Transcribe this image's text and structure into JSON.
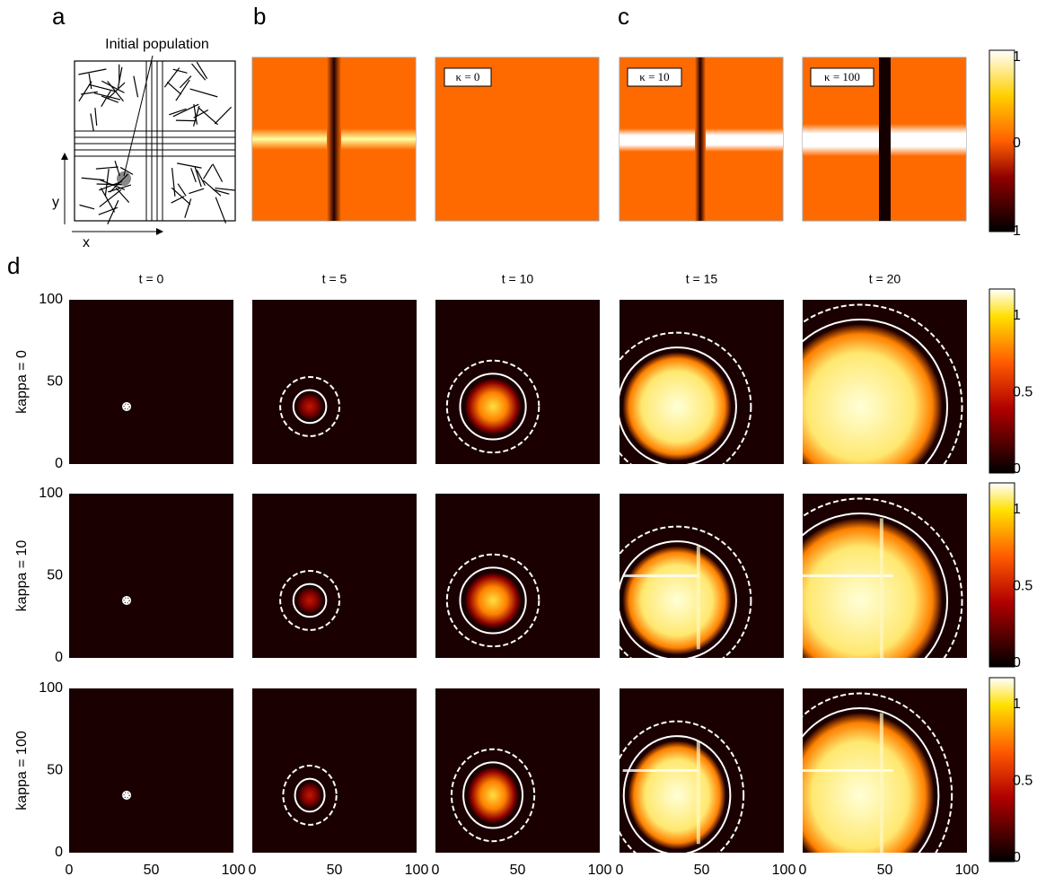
{
  "panel_labels": [
    "a",
    "b",
    "c",
    "d"
  ],
  "schematic": {
    "label": "Initial population",
    "x_label": "x",
    "y_label": "y"
  },
  "kappa_boxes": [
    "κ = 0",
    "κ = 10",
    "κ = 100"
  ],
  "top_colorbar_ticks": [
    "1",
    "0",
    "1"
  ],
  "columns": [
    "t = 0",
    "t = 5",
    "t = 10",
    "t = 15",
    "t = 20"
  ],
  "rows": [
    "kappa = 0",
    "kappa = 10",
    "kappa = 100"
  ],
  "xticks": [
    0,
    50,
    100
  ],
  "yticks": [
    0,
    50,
    100
  ],
  "colorbar_ticks": [
    0,
    0.5,
    1
  ]
}
